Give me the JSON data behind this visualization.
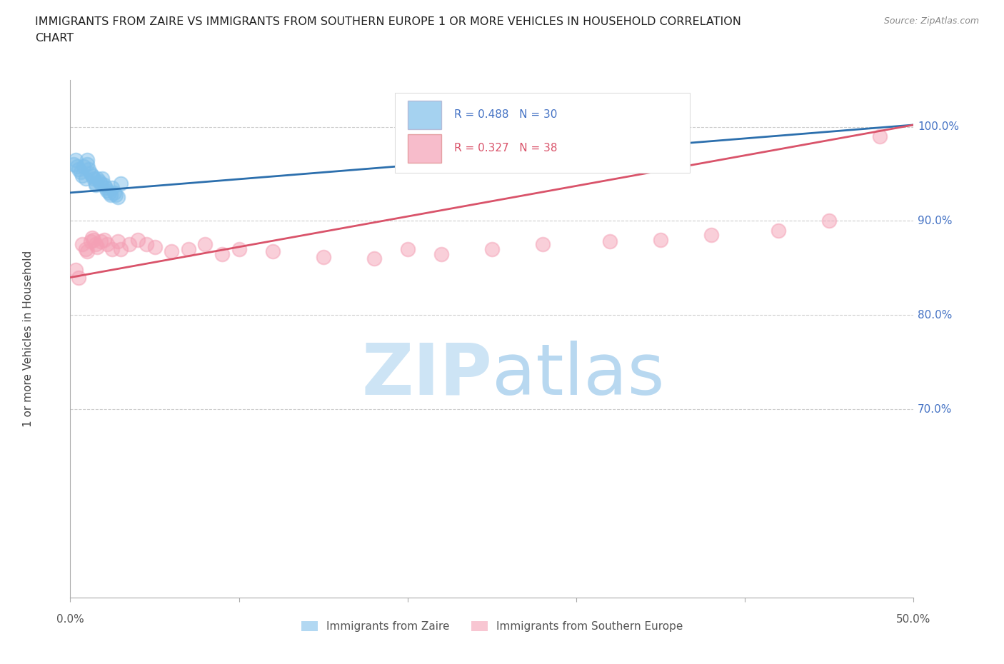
{
  "title_line1": "IMMIGRANTS FROM ZAIRE VS IMMIGRANTS FROM SOUTHERN EUROPE 1 OR MORE VEHICLES IN HOUSEHOLD CORRELATION",
  "title_line2": "CHART",
  "source": "Source: ZipAtlas.com",
  "ylabel": "1 or more Vehicles in Household",
  "ytick_labels": [
    "100.0%",
    "90.0%",
    "80.0%",
    "70.0%"
  ],
  "ytick_values": [
    1.0,
    0.9,
    0.8,
    0.7
  ],
  "xlim": [
    0.0,
    0.5
  ],
  "ylim": [
    0.5,
    1.05
  ],
  "blue_R": 0.488,
  "blue_N": 30,
  "pink_R": 0.327,
  "pink_N": 38,
  "blue_color": "#7fbfea",
  "blue_line_color": "#2c6fad",
  "pink_color": "#f4a0b5",
  "pink_line_color": "#d9536a",
  "legend_label_blue": "Immigrants from Zaire",
  "legend_label_pink": "Immigrants from Southern Europe",
  "blue_x": [
    0.002,
    0.003,
    0.004,
    0.005,
    0.006,
    0.007,
    0.008,
    0.009,
    0.01,
    0.01,
    0.011,
    0.012,
    0.013,
    0.014,
    0.015,
    0.015,
    0.016,
    0.017,
    0.018,
    0.019,
    0.02,
    0.021,
    0.022,
    0.023,
    0.024,
    0.025,
    0.026,
    0.027,
    0.028,
    0.03
  ],
  "blue_y": [
    0.96,
    0.965,
    0.958,
    0.955,
    0.952,
    0.948,
    0.958,
    0.945,
    0.96,
    0.965,
    0.955,
    0.95,
    0.948,
    0.945,
    0.94,
    0.938,
    0.945,
    0.942,
    0.94,
    0.945,
    0.938,
    0.935,
    0.932,
    0.93,
    0.928,
    0.935,
    0.93,
    0.928,
    0.925,
    0.94
  ],
  "pink_x": [
    0.003,
    0.005,
    0.007,
    0.009,
    0.01,
    0.012,
    0.013,
    0.014,
    0.015,
    0.016,
    0.018,
    0.02,
    0.022,
    0.025,
    0.028,
    0.03,
    0.035,
    0.04,
    0.045,
    0.05,
    0.06,
    0.07,
    0.08,
    0.09,
    0.1,
    0.12,
    0.15,
    0.18,
    0.2,
    0.22,
    0.25,
    0.28,
    0.32,
    0.35,
    0.38,
    0.42,
    0.45,
    0.48
  ],
  "pink_y": [
    0.848,
    0.84,
    0.875,
    0.87,
    0.868,
    0.878,
    0.882,
    0.88,
    0.875,
    0.872,
    0.878,
    0.88,
    0.875,
    0.87,
    0.878,
    0.87,
    0.875,
    0.88,
    0.875,
    0.872,
    0.868,
    0.87,
    0.875,
    0.865,
    0.87,
    0.868,
    0.862,
    0.86,
    0.87,
    0.865,
    0.87,
    0.875,
    0.878,
    0.88,
    0.885,
    0.89,
    0.9,
    0.99
  ],
  "watermark_zip_color": "#cde4f5",
  "watermark_atlas_color": "#b8d8f0",
  "background_color": "#ffffff",
  "grid_color": "#cccccc"
}
